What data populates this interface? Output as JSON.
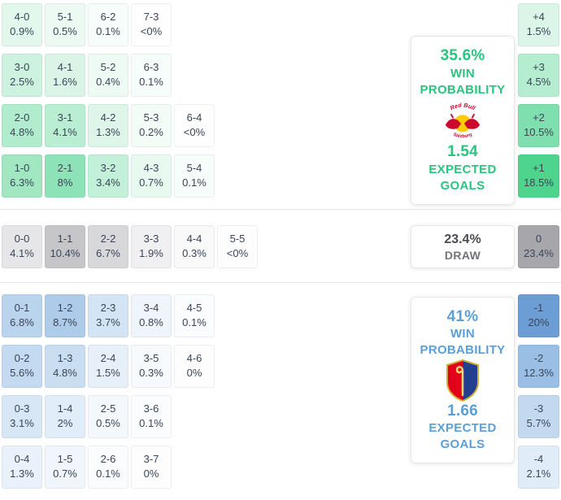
{
  "colors": {
    "home_accent": "#29c47e",
    "away_accent": "#5b9fd8",
    "draw_accent": "#4c4c50",
    "cell_text": "#3a4557"
  },
  "sections": [
    {
      "id": "home",
      "panel": {
        "win_pct": "35.6%",
        "win_line1": "WIN",
        "win_line2": "PROBABILITY",
        "xg": "1.54",
        "xg_line1": "EXPECTED",
        "xg_line2": "GOALS",
        "logo": "rb-salzburg"
      },
      "rows": [
        [
          {
            "score": "4-0",
            "pct": "0.9%",
            "bg": "#e3f8ed"
          },
          {
            "score": "5-1",
            "pct": "0.5%",
            "bg": "#ecfaf3"
          },
          {
            "score": "6-2",
            "pct": "0.1%",
            "bg": "#f7fdfa"
          },
          {
            "score": "7-3",
            "pct": "<0%",
            "bg": "#fdfefd"
          }
        ],
        [
          {
            "score": "3-0",
            "pct": "2.5%",
            "bg": "#cdf2df"
          },
          {
            "score": "4-1",
            "pct": "1.6%",
            "bg": "#daf5e7"
          },
          {
            "score": "5-2",
            "pct": "0.4%",
            "bg": "#eefaf4"
          },
          {
            "score": "6-3",
            "pct": "0.1%",
            "bg": "#f7fdfa"
          }
        ],
        [
          {
            "score": "2-0",
            "pct": "4.8%",
            "bg": "#b2ecce"
          },
          {
            "score": "3-1",
            "pct": "4.1%",
            "bg": "#b9eed2"
          },
          {
            "score": "4-2",
            "pct": "1.3%",
            "bg": "#def6e9"
          },
          {
            "score": "5-3",
            "pct": "0.2%",
            "bg": "#f3fcf7"
          },
          {
            "score": "6-4",
            "pct": "<0%",
            "bg": "#fdfefd"
          }
        ],
        [
          {
            "score": "1-0",
            "pct": "6.3%",
            "bg": "#a0e7c2"
          },
          {
            "score": "2-1",
            "pct": "8%",
            "bg": "#8ee2b7"
          },
          {
            "score": "3-2",
            "pct": "3.4%",
            "bg": "#c2f0d8"
          },
          {
            "score": "4-3",
            "pct": "0.7%",
            "bg": "#e8f9f0"
          },
          {
            "score": "5-4",
            "pct": "0.1%",
            "bg": "#f7fdfa"
          }
        ]
      ],
      "diff": [
        {
          "label": "+4",
          "pct": "1.5%",
          "bg": "#dbf5e8"
        },
        {
          "label": "+3",
          "pct": "4.5%",
          "bg": "#b5edd0"
        },
        {
          "label": "+2",
          "pct": "10.5%",
          "bg": "#7fdfae"
        },
        {
          "label": "+1",
          "pct": "18.5%",
          "bg": "#4ed48c"
        }
      ]
    },
    {
      "id": "draw",
      "panel": {
        "pct": "23.4%",
        "label": "DRAW"
      },
      "rows": [
        [
          {
            "score": "0-0",
            "pct": "4.1%",
            "bg": "#e6e6e8"
          },
          {
            "score": "1-1",
            "pct": "10.4%",
            "bg": "#c6c6c9"
          },
          {
            "score": "2-2",
            "pct": "6.7%",
            "bg": "#d8d8db"
          },
          {
            "score": "3-3",
            "pct": "1.9%",
            "bg": "#f0f0f2"
          },
          {
            "score": "4-4",
            "pct": "0.3%",
            "bg": "#f9f9fa"
          },
          {
            "score": "5-5",
            "pct": "<0%",
            "bg": "#fdfdfe"
          }
        ]
      ],
      "diff": [
        {
          "label": "0",
          "pct": "23.4%",
          "bg": "#a7a7ab"
        }
      ]
    },
    {
      "id": "away",
      "panel": {
        "win_pct": "41%",
        "win_line1": "WIN",
        "win_line2": "PROBABILITY",
        "xg": "1.66",
        "xg_line1": "EXPECTED",
        "xg_line2": "GOALS",
        "logo": "fc-basel"
      },
      "rows": [
        [
          {
            "score": "0-1",
            "pct": "6.8%",
            "bg": "#bbd4ee"
          },
          {
            "score": "1-2",
            "pct": "8.7%",
            "bg": "#aecbe9"
          },
          {
            "score": "2-3",
            "pct": "3.7%",
            "bg": "#d3e4f4"
          },
          {
            "score": "3-4",
            "pct": "0.8%",
            "bg": "#eff5fb"
          },
          {
            "score": "4-5",
            "pct": "0.1%",
            "bg": "#fafcfe"
          }
        ],
        [
          {
            "score": "0-2",
            "pct": "5.6%",
            "bg": "#c4daf0"
          },
          {
            "score": "1-3",
            "pct": "4.8%",
            "bg": "#cadef1"
          },
          {
            "score": "2-4",
            "pct": "1.5%",
            "bg": "#e7f0f9"
          },
          {
            "score": "3-5",
            "pct": "0.3%",
            "bg": "#f7fafd"
          },
          {
            "score": "4-6",
            "pct": "0%",
            "bg": "#fdfdfe"
          }
        ],
        [
          {
            "score": "0-3",
            "pct": "3.1%",
            "bg": "#d8e7f5"
          },
          {
            "score": "1-4",
            "pct": "2%",
            "bg": "#e1edf8"
          },
          {
            "score": "2-5",
            "pct": "0.5%",
            "bg": "#f3f8fc"
          },
          {
            "score": "3-6",
            "pct": "0.1%",
            "bg": "#fafcfe"
          }
        ],
        [
          {
            "score": "0-4",
            "pct": "1.3%",
            "bg": "#e9f2fa"
          },
          {
            "score": "1-5",
            "pct": "0.7%",
            "bg": "#f0f6fc"
          },
          {
            "score": "2-6",
            "pct": "0.1%",
            "bg": "#fafcfe"
          },
          {
            "score": "3-7",
            "pct": "0%",
            "bg": "#fdfdfe"
          }
        ]
      ],
      "diff": [
        {
          "label": "-1",
          "pct": "20%",
          "bg": "#6d9dd5"
        },
        {
          "label": "-2",
          "pct": "12.3%",
          "bg": "#9abfe4"
        },
        {
          "label": "-3",
          "pct": "5.7%",
          "bg": "#c3d9ef"
        },
        {
          "label": "-4",
          "pct": "2.1%",
          "bg": "#e0ecf7"
        }
      ]
    }
  ],
  "chart_data": {
    "type": "heatmap",
    "title": "Correct-score probability matrix with win/draw probabilities and expected goals",
    "groups": [
      {
        "name": "home_win",
        "win_probability": "35.6%",
        "expected_goals": "1.54",
        "cells": [
          [
            "4-0",
            "0.9%"
          ],
          [
            "5-1",
            "0.5%"
          ],
          [
            "6-2",
            "0.1%"
          ],
          [
            "7-3",
            "<0%"
          ],
          [
            "3-0",
            "2.5%"
          ],
          [
            "4-1",
            "1.6%"
          ],
          [
            "5-2",
            "0.4%"
          ],
          [
            "6-3",
            "0.1%"
          ],
          [
            "2-0",
            "4.8%"
          ],
          [
            "3-1",
            "4.1%"
          ],
          [
            "4-2",
            "1.3%"
          ],
          [
            "5-3",
            "0.2%"
          ],
          [
            "6-4",
            "<0%"
          ],
          [
            "1-0",
            "6.3%"
          ],
          [
            "2-1",
            "8%"
          ],
          [
            "3-2",
            "3.4%"
          ],
          [
            "4-3",
            "0.7%"
          ],
          [
            "5-4",
            "0.1%"
          ]
        ],
        "goal_difference": [
          [
            "+4",
            "1.5%"
          ],
          [
            "+3",
            "4.5%"
          ],
          [
            "+2",
            "10.5%"
          ],
          [
            "+1",
            "18.5%"
          ]
        ]
      },
      {
        "name": "draw",
        "probability": "23.4%",
        "cells": [
          [
            "0-0",
            "4.1%"
          ],
          [
            "1-1",
            "10.4%"
          ],
          [
            "2-2",
            "6.7%"
          ],
          [
            "3-3",
            "1.9%"
          ],
          [
            "4-4",
            "0.3%"
          ],
          [
            "5-5",
            "<0%"
          ]
        ],
        "goal_difference": [
          [
            "0",
            "23.4%"
          ]
        ]
      },
      {
        "name": "away_win",
        "win_probability": "41%",
        "expected_goals": "1.66",
        "cells": [
          [
            "0-1",
            "6.8%"
          ],
          [
            "1-2",
            "8.7%"
          ],
          [
            "2-3",
            "3.7%"
          ],
          [
            "3-4",
            "0.8%"
          ],
          [
            "4-5",
            "0.1%"
          ],
          [
            "0-2",
            "5.6%"
          ],
          [
            "1-3",
            "4.8%"
          ],
          [
            "2-4",
            "1.5%"
          ],
          [
            "3-5",
            "0.3%"
          ],
          [
            "4-6",
            "0%"
          ],
          [
            "0-3",
            "3.1%"
          ],
          [
            "1-4",
            "2%"
          ],
          [
            "2-5",
            "0.5%"
          ],
          [
            "3-6",
            "0.1%"
          ],
          [
            "0-4",
            "1.3%"
          ],
          [
            "1-5",
            "0.7%"
          ],
          [
            "2-6",
            "0.1%"
          ],
          [
            "3-7",
            "0%"
          ]
        ],
        "goal_difference": [
          [
            "-1",
            "20%"
          ],
          [
            "-2",
            "12.3%"
          ],
          [
            "-3",
            "5.7%"
          ],
          [
            "-4",
            "2.1%"
          ]
        ]
      }
    ]
  }
}
